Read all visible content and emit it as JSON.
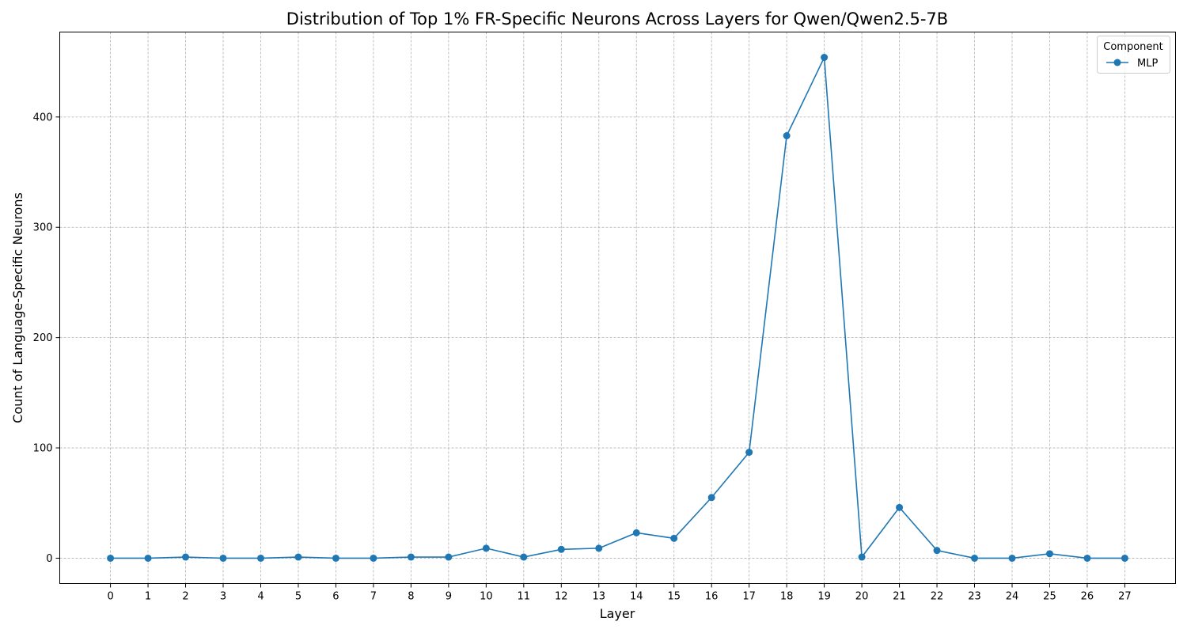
{
  "chart_data": {
    "type": "line",
    "title": "Distribution of Top 1% FR-Specific Neurons Across Layers for Qwen/Qwen2.5-7B",
    "xlabel": "Layer",
    "ylabel": "Count of Language-Specific Neurons",
    "x": [
      0,
      1,
      2,
      3,
      4,
      5,
      6,
      7,
      8,
      9,
      10,
      11,
      12,
      13,
      14,
      15,
      16,
      17,
      18,
      19,
      20,
      21,
      22,
      23,
      24,
      25,
      26,
      27
    ],
    "ylim": [
      -23,
      477
    ],
    "yticks": [
      0,
      100,
      200,
      300,
      400
    ],
    "grid": true,
    "legend": {
      "title": "Component",
      "placement": "top-right"
    },
    "series": [
      {
        "name": "MLP",
        "color": "#1f77b4",
        "marker": "circle",
        "values": [
          0,
          0,
          1,
          0,
          0,
          1,
          0,
          0,
          1,
          1,
          9,
          1,
          8,
          9,
          23,
          18,
          55,
          96,
          383,
          454,
          1,
          46,
          7,
          0,
          0,
          4,
          0,
          0
        ]
      }
    ]
  }
}
